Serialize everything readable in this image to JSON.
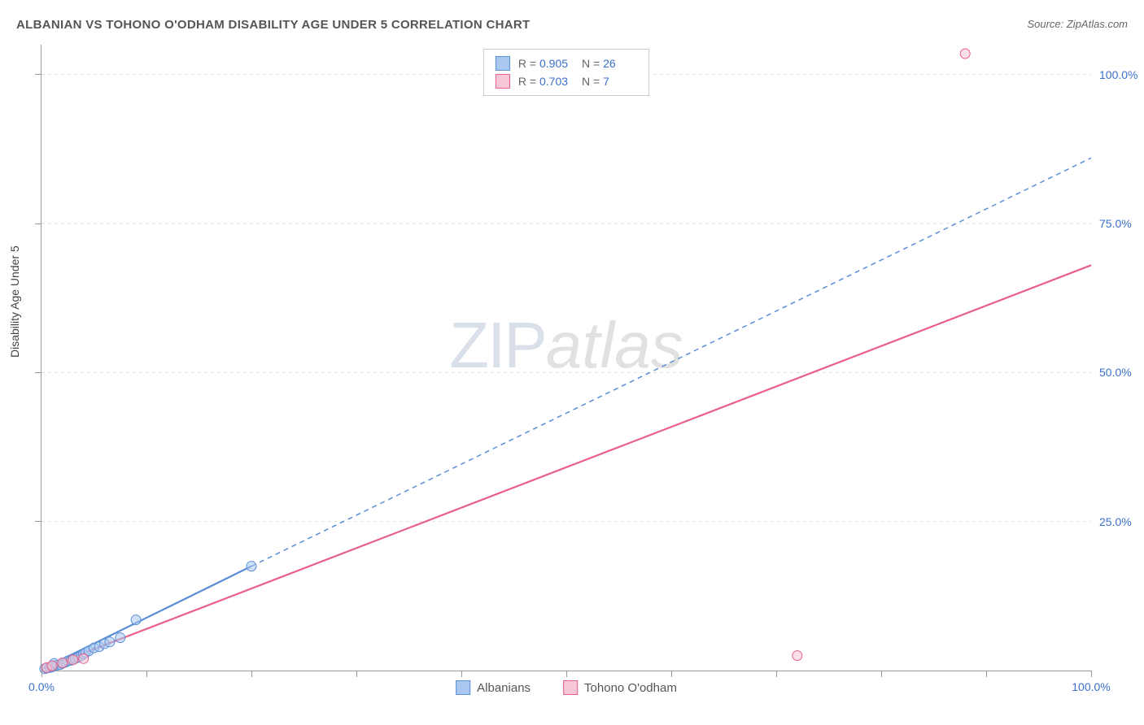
{
  "title": "ALBANIAN VS TOHONO O'ODHAM DISABILITY AGE UNDER 5 CORRELATION CHART",
  "source": "Source: ZipAtlas.com",
  "y_axis_title": "Disability Age Under 5",
  "watermark": {
    "part1": "ZIP",
    "part2": "atlas"
  },
  "chart": {
    "type": "scatter-with-regression",
    "xlim": [
      0,
      100
    ],
    "ylim": [
      0,
      105
    ],
    "x_ticks_minor_step": 10,
    "y_ticks": [
      25,
      50,
      75,
      100
    ],
    "y_tick_labels": [
      "25.0%",
      "50.0%",
      "75.0%",
      "100.0%"
    ],
    "x_labels": [
      {
        "value": 0,
        "label": "0.0%"
      },
      {
        "value": 100,
        "label": "100.0%"
      }
    ],
    "grid_color": "#dddddd",
    "axis_color": "#999999",
    "background_color": "#ffffff"
  },
  "series": [
    {
      "name": "Albanians",
      "color_fill": "#a9c7ef",
      "color_stroke": "#5a8fd6",
      "swatch_fill": "#a9c7ef",
      "swatch_border": "#5a8fd6",
      "R": "0.905",
      "N": "26",
      "marker_radius": 6,
      "points": [
        [
          0.3,
          0.3
        ],
        [
          0.5,
          0.4
        ],
        [
          0.8,
          0.5
        ],
        [
          1.0,
          0.6
        ],
        [
          1.2,
          0.8
        ],
        [
          1.5,
          0.9
        ],
        [
          1.8,
          1.0
        ],
        [
          2.0,
          1.2
        ],
        [
          2.3,
          1.4
        ],
        [
          2.5,
          1.6
        ],
        [
          2.8,
          1.7
        ],
        [
          3.0,
          1.9
        ],
        [
          3.2,
          2.0
        ],
        [
          3.5,
          2.2
        ],
        [
          3.8,
          2.5
        ],
        [
          4.0,
          2.8
        ],
        [
          4.2,
          3.0
        ],
        [
          4.5,
          3.3
        ],
        [
          5.0,
          3.8
        ],
        [
          5.5,
          4.0
        ],
        [
          6.0,
          4.5
        ],
        [
          6.5,
          4.8
        ],
        [
          7.5,
          5.5
        ],
        [
          9.0,
          8.5
        ],
        [
          20.0,
          17.5
        ],
        [
          1.2,
          1.2
        ]
      ],
      "regression": {
        "solid_segment": {
          "x1": 0,
          "y1": 0.2,
          "x2": 20,
          "y2": 17.5
        },
        "dashed_segment": {
          "x1": 20,
          "y1": 17.5,
          "x2": 100,
          "y2": 86
        },
        "stroke_width": 2.2,
        "dash": "6,5"
      }
    },
    {
      "name": "Tohono O'odham",
      "color_fill": "#f7c7d6",
      "color_stroke": "#e85f8a",
      "swatch_fill": "#f7c7d6",
      "swatch_border": "#e85f8a",
      "R": "0.703",
      "N": "7",
      "marker_radius": 6,
      "points": [
        [
          0.5,
          0.5
        ],
        [
          1.0,
          0.8
        ],
        [
          2.0,
          1.3
        ],
        [
          3.0,
          1.8
        ],
        [
          4.0,
          2.0
        ],
        [
          72.0,
          2.5
        ],
        [
          88.0,
          103.5
        ]
      ],
      "regression": {
        "solid_segment": {
          "x1": 0,
          "y1": 0.2,
          "x2": 100,
          "y2": 68
        },
        "dashed_segment": null,
        "stroke_width": 2.2
      }
    }
  ],
  "bottom_legend": [
    {
      "label": "Albanians",
      "swatch_fill": "#a9c7ef",
      "swatch_border": "#5a8fd6"
    },
    {
      "label": "Tohono O'odham",
      "swatch_fill": "#f7c7d6",
      "swatch_border": "#e85f8a"
    }
  ]
}
